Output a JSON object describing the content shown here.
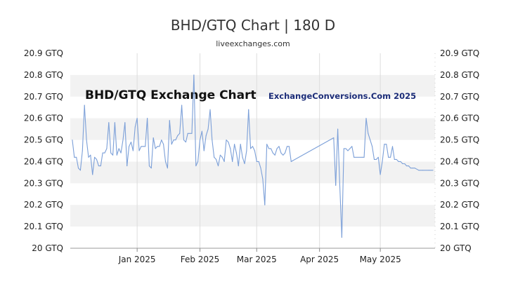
{
  "header": {
    "title": "BHD/GTQ Chart | 180 D",
    "subtitle": "liveexchanges.com"
  },
  "watermarks": {
    "left": "BHD/GTQ Exchange Chart",
    "right": "ExchangeConversions.Com 2025",
    "right_color": "#1b2c78"
  },
  "chart_data": {
    "type": "line",
    "series_color": "#7b9fd8",
    "grid": "alternating horizontal bands",
    "ylim": [
      20.0,
      20.9
    ],
    "yticks": [
      "20 GTQ",
      "20.1 GTQ",
      "20.2 GTQ",
      "20.3 GTQ",
      "20.4 GTQ",
      "20.5 GTQ",
      "20.6 GTQ",
      "20.7 GTQ",
      "20.8 GTQ",
      "20.9 GTQ"
    ],
    "x_range": [
      "2024-11-29",
      "2025-05-28"
    ],
    "xticks": [
      {
        "label": "Jan 2025",
        "date": "2025-01-01"
      },
      {
        "label": "Feb 2025",
        "date": "2025-02-01"
      },
      {
        "label": "Mar 2025",
        "date": "2025-03-01"
      },
      {
        "label": "Apr 2025",
        "date": "2025-04-01"
      },
      {
        "label": "May 2025",
        "date": "2025-05-01"
      }
    ],
    "points": [
      [
        "2024-11-30",
        20.5
      ],
      [
        "2024-12-01",
        20.42
      ],
      [
        "2024-12-02",
        20.42
      ],
      [
        "2024-12-03",
        20.37
      ],
      [
        "2024-12-04",
        20.36
      ],
      [
        "2024-12-05",
        20.45
      ],
      [
        "2024-12-06",
        20.66
      ],
      [
        "2024-12-07",
        20.5
      ],
      [
        "2024-12-08",
        20.42
      ],
      [
        "2024-12-09",
        20.43
      ],
      [
        "2024-12-10",
        20.34
      ],
      [
        "2024-12-11",
        20.42
      ],
      [
        "2024-12-12",
        20.41
      ],
      [
        "2024-12-13",
        20.38
      ],
      [
        "2024-12-14",
        20.38
      ],
      [
        "2024-12-15",
        20.44
      ],
      [
        "2024-12-16",
        20.44
      ],
      [
        "2024-12-17",
        20.46
      ],
      [
        "2024-12-18",
        20.58
      ],
      [
        "2024-12-19",
        20.44
      ],
      [
        "2024-12-20",
        20.43
      ],
      [
        "2024-12-21",
        20.58
      ],
      [
        "2024-12-22",
        20.43
      ],
      [
        "2024-12-23",
        20.46
      ],
      [
        "2024-12-24",
        20.44
      ],
      [
        "2024-12-25",
        20.5
      ],
      [
        "2024-12-26",
        20.58
      ],
      [
        "2024-12-27",
        20.38
      ],
      [
        "2024-12-28",
        20.47
      ],
      [
        "2024-12-29",
        20.49
      ],
      [
        "2024-12-30",
        20.45
      ],
      [
        "2024-12-31",
        20.56
      ],
      [
        "2025-01-01",
        20.6
      ],
      [
        "2025-01-02",
        20.45
      ],
      [
        "2025-01-03",
        20.47
      ],
      [
        "2025-01-04",
        20.47
      ],
      [
        "2025-01-05",
        20.47
      ],
      [
        "2025-01-06",
        20.6
      ],
      [
        "2025-01-07",
        20.38
      ],
      [
        "2025-01-08",
        20.37
      ],
      [
        "2025-01-09",
        20.51
      ],
      [
        "2025-01-10",
        20.46
      ],
      [
        "2025-01-11",
        20.47
      ],
      [
        "2025-01-12",
        20.47
      ],
      [
        "2025-01-13",
        20.5
      ],
      [
        "2025-01-14",
        20.48
      ],
      [
        "2025-01-15",
        20.4
      ],
      [
        "2025-01-16",
        20.37
      ],
      [
        "2025-01-17",
        20.59
      ],
      [
        "2025-01-18",
        20.48
      ],
      [
        "2025-01-19",
        20.5
      ],
      [
        "2025-01-20",
        20.5
      ],
      [
        "2025-01-21",
        20.52
      ],
      [
        "2025-01-22",
        20.53
      ],
      [
        "2025-01-23",
        20.66
      ],
      [
        "2025-01-24",
        20.5
      ],
      [
        "2025-01-25",
        20.49
      ],
      [
        "2025-01-26",
        20.53
      ],
      [
        "2025-01-27",
        20.53
      ],
      [
        "2025-01-28",
        20.53
      ],
      [
        "2025-01-29",
        20.8
      ],
      [
        "2025-01-30",
        20.38
      ],
      [
        "2025-01-31",
        20.4
      ],
      [
        "2025-02-01",
        20.5
      ],
      [
        "2025-02-02",
        20.54
      ],
      [
        "2025-02-03",
        20.45
      ],
      [
        "2025-02-04",
        20.52
      ],
      [
        "2025-02-05",
        20.55
      ],
      [
        "2025-02-06",
        20.64
      ],
      [
        "2025-02-07",
        20.5
      ],
      [
        "2025-02-08",
        20.42
      ],
      [
        "2025-02-09",
        20.41
      ],
      [
        "2025-02-10",
        20.38
      ],
      [
        "2025-02-11",
        20.43
      ],
      [
        "2025-02-12",
        20.42
      ],
      [
        "2025-02-13",
        20.4
      ],
      [
        "2025-02-14",
        20.5
      ],
      [
        "2025-02-15",
        20.49
      ],
      [
        "2025-02-16",
        20.46
      ],
      [
        "2025-02-17",
        20.4
      ],
      [
        "2025-02-18",
        20.48
      ],
      [
        "2025-02-19",
        20.44
      ],
      [
        "2025-02-20",
        20.38
      ],
      [
        "2025-02-21",
        20.48
      ],
      [
        "2025-02-22",
        20.42
      ],
      [
        "2025-02-23",
        20.39
      ],
      [
        "2025-02-24",
        20.45
      ],
      [
        "2025-02-25",
        20.64
      ],
      [
        "2025-02-26",
        20.46
      ],
      [
        "2025-02-27",
        20.47
      ],
      [
        "2025-02-28",
        20.45
      ],
      [
        "2025-03-01",
        20.4
      ],
      [
        "2025-03-02",
        20.4
      ],
      [
        "2025-03-03",
        20.37
      ],
      [
        "2025-03-04",
        20.32
      ],
      [
        "2025-03-05",
        20.2
      ],
      [
        "2025-03-06",
        20.48
      ],
      [
        "2025-03-07",
        20.46
      ],
      [
        "2025-03-08",
        20.46
      ],
      [
        "2025-03-09",
        20.44
      ],
      [
        "2025-03-10",
        20.43
      ],
      [
        "2025-03-11",
        20.46
      ],
      [
        "2025-03-12",
        20.47
      ],
      [
        "2025-03-13",
        20.44
      ],
      [
        "2025-03-14",
        20.43
      ],
      [
        "2025-03-15",
        20.44
      ],
      [
        "2025-03-16",
        20.47
      ],
      [
        "2025-03-17",
        20.47
      ],
      [
        "2025-03-18",
        20.4
      ],
      [
        "2025-04-08",
        20.51
      ],
      [
        "2025-04-09",
        20.29
      ],
      [
        "2025-04-10",
        20.55
      ],
      [
        "2025-04-11",
        20.29
      ],
      [
        "2025-04-12",
        20.05
      ],
      [
        "2025-04-13",
        20.46
      ],
      [
        "2025-04-14",
        20.46
      ],
      [
        "2025-04-15",
        20.45
      ],
      [
        "2025-04-16",
        20.46
      ],
      [
        "2025-04-17",
        20.47
      ],
      [
        "2025-04-18",
        20.42
      ],
      [
        "2025-04-22",
        20.42
      ],
      [
        "2025-04-23",
        20.42
      ],
      [
        "2025-04-24",
        20.6
      ],
      [
        "2025-04-25",
        20.53
      ],
      [
        "2025-04-26",
        20.5
      ],
      [
        "2025-04-27",
        20.47
      ],
      [
        "2025-04-28",
        20.41
      ],
      [
        "2025-04-29",
        20.41
      ],
      [
        "2025-04-30",
        20.42
      ],
      [
        "2025-05-01",
        20.34
      ],
      [
        "2025-05-02",
        20.4
      ],
      [
        "2025-05-03",
        20.48
      ],
      [
        "2025-05-04",
        20.48
      ],
      [
        "2025-05-05",
        20.42
      ],
      [
        "2025-05-06",
        20.42
      ],
      [
        "2025-05-07",
        20.47
      ],
      [
        "2025-05-08",
        20.41
      ],
      [
        "2025-05-09",
        20.41
      ],
      [
        "2025-05-10",
        20.4
      ],
      [
        "2025-05-11",
        20.4
      ],
      [
        "2025-05-12",
        20.39
      ],
      [
        "2025-05-13",
        20.39
      ],
      [
        "2025-05-14",
        20.38
      ],
      [
        "2025-05-15",
        20.38
      ],
      [
        "2025-05-16",
        20.37
      ],
      [
        "2025-05-17",
        20.37
      ],
      [
        "2025-05-18",
        20.37
      ],
      [
        "2025-05-20",
        20.36
      ],
      [
        "2025-05-22",
        20.36
      ],
      [
        "2025-05-25",
        20.36
      ],
      [
        "2025-05-27",
        20.36
      ]
    ]
  }
}
